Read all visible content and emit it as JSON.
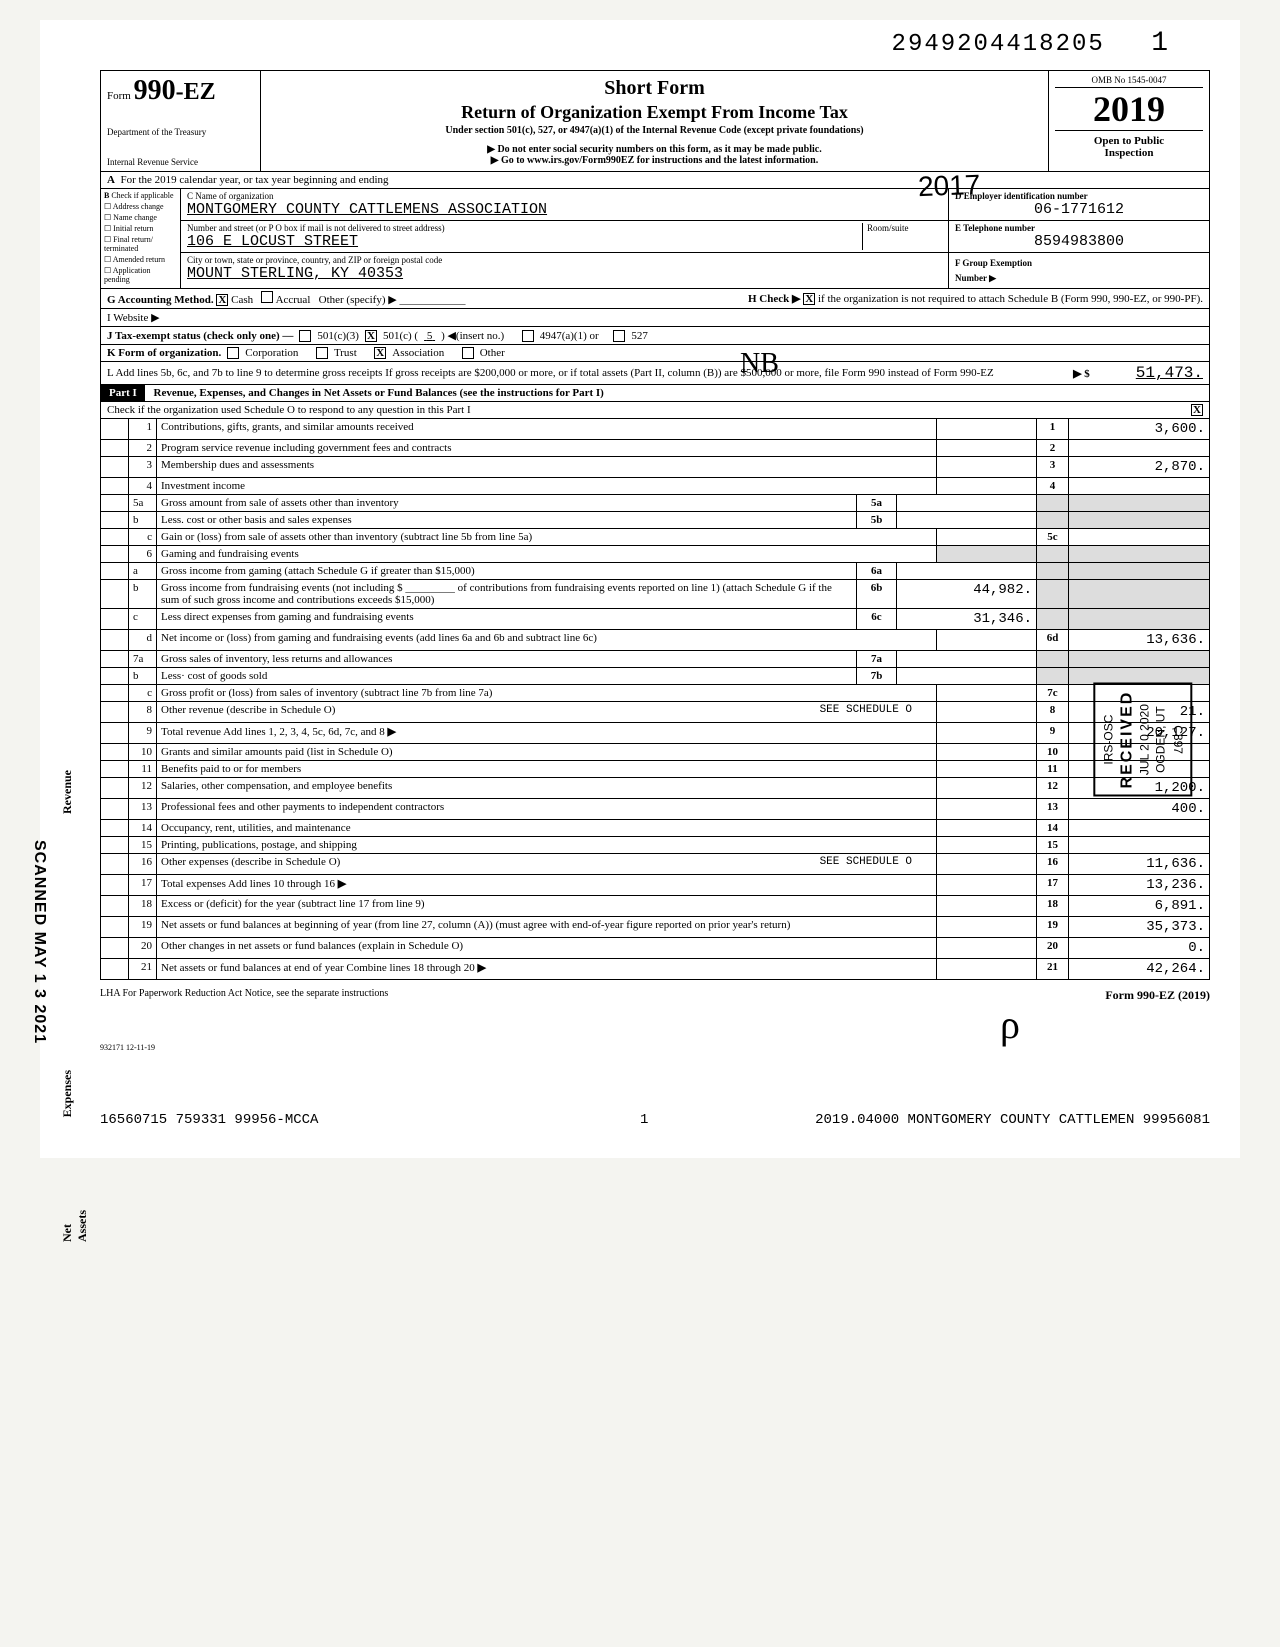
{
  "dln": "2949204418205",
  "dln_suffix": "1",
  "form": {
    "prefix": "Form",
    "number": "990-EZ",
    "short": "Short Form",
    "title": "Return of Organization Exempt From Income Tax",
    "subtitle": "Under section 501(c), 527, or 4947(a)(1) of the Internal Revenue Code (except private foundations)",
    "warn": "▶ Do not enter social security numbers on this form, as it may be made public.",
    "goto": "▶ Go to www.irs.gov/Form990EZ for instructions and the latest information.",
    "dept1": "Department of the Treasury",
    "dept2": "Internal Revenue Service",
    "omb": "OMB No 1545-0047",
    "year": "2019",
    "open1": "Open to Public",
    "open2": "Inspection"
  },
  "stamp_year": "2017",
  "line_a": "For the 2019 calendar year, or tax year beginning                                               and ending",
  "checkboxes": {
    "header": "Check if applicable",
    "items": [
      "Address change",
      "Name change",
      "Initial return",
      "Final return/ terminated",
      "Amended return",
      "Application pending"
    ]
  },
  "org": {
    "c_label": "C Name of organization",
    "name": "MONTGOMERY COUNTY CATTLEMENS ASSOCIATION",
    "addr_label": "Number and street (or P O box if mail is not delivered to street address)",
    "room_label": "Room/suite",
    "street": "106 E LOCUST STREET",
    "city_label": "City or town, state or province, country, and ZIP or foreign postal code",
    "city": "MOUNT STERLING, KY  40353",
    "d_label": "D Employer identification number",
    "ein": "06-1771612",
    "e_label": "E Telephone number",
    "phone": "8594983800",
    "f_label": "F Group Exemption",
    "f_label2": "Number ▶"
  },
  "initials": "NB",
  "line_g": {
    "label": "G  Accounting Method.",
    "cash": "Cash",
    "accrual": "Accrual",
    "other": "Other (specify) ▶",
    "cash_checked": "X"
  },
  "line_h": {
    "label": "H Check ▶",
    "text": "if the organization is not required to attach Schedule B (Form 990, 990-EZ, or 990-PF).",
    "checked": "X"
  },
  "line_i": "I   Website ▶",
  "line_j": {
    "label": "J   Tax-exempt status (check only one) —",
    "c3": "501(c)(3)",
    "c": "501(c) (",
    "cnum": "5",
    "cnum_after": ") ◀(insert no.)",
    "a": "4947(a)(1) or",
    "s527": "527",
    "checked": "X"
  },
  "line_k": {
    "label": "K  Form of organization.",
    "corp": "Corporation",
    "trust": "Trust",
    "assoc": "Association",
    "other": "Other",
    "checked": "X"
  },
  "line_l": {
    "text": "L  Add lines 5b, 6c, and 7b to line 9 to determine gross receipts  If gross receipts are $200,000 or more, or if total assets (Part II, column (B)) are $500,000 or more, file Form 990 instead of Form 990-EZ",
    "arrow": "▶  $",
    "amt": "51,473."
  },
  "part1": {
    "label": "Part I",
    "title": "Revenue, Expenses, and Changes in Net Assets or Fund Balances (see the instructions for Part I)",
    "check_text": "Check if the organization used Schedule O to respond to any question in this Part I",
    "checked": "X"
  },
  "rows": [
    {
      "n": "1",
      "desc": "Contributions, gifts, grants, and similar amounts received",
      "ln": "1",
      "amt": "3,600."
    },
    {
      "n": "2",
      "desc": "Program service revenue including government fees and contracts",
      "ln": "2",
      "amt": ""
    },
    {
      "n": "3",
      "desc": "Membership dues and assessments",
      "ln": "3",
      "amt": "2,870."
    },
    {
      "n": "4",
      "desc": "Investment income",
      "ln": "4",
      "amt": ""
    }
  ],
  "rows5": [
    {
      "n": "5a",
      "desc": "Gross amount from sale of assets other than inventory",
      "iln": "5a",
      "iamt": ""
    },
    {
      "n": "b",
      "desc": "Less. cost or other basis and sales expenses",
      "iln": "5b",
      "iamt": ""
    },
    {
      "n": "c",
      "desc": "Gain or (loss) from sale of assets other than inventory (subtract line 5b from line 5a)",
      "ln": "5c",
      "amt": ""
    }
  ],
  "rows6": {
    "hdr": {
      "n": "6",
      "desc": "Gaming and fundraising events"
    },
    "a": {
      "n": "a",
      "desc": "Gross income from gaming (attach Schedule G if greater than $15,000)",
      "iln": "6a",
      "iamt": ""
    },
    "b": {
      "n": "b",
      "desc1": "Gross income from fundraising events (not including $",
      "desc2": "of contributions from fundraising events reported on line 1) (attach Schedule G if the sum of such gross income and contributions exceeds $15,000)",
      "iln": "6b",
      "iamt": "44,982."
    },
    "c": {
      "n": "c",
      "desc": "Less  direct expenses from gaming and fundraising events",
      "iln": "6c",
      "iamt": "31,346."
    },
    "d": {
      "n": "d",
      "desc": "Net income or (loss) from gaming and fundraising events (add lines 6a and 6b and subtract line 6c)",
      "ln": "6d",
      "amt": "13,636."
    }
  },
  "rows7": [
    {
      "n": "7a",
      "desc": "Gross sales of inventory, less returns and allowances",
      "iln": "7a",
      "iamt": ""
    },
    {
      "n": "b",
      "desc": "Less· cost of goods sold",
      "iln": "7b",
      "iamt": ""
    },
    {
      "n": "c",
      "desc": "Gross profit or (loss) from sales of inventory (subtract line 7b from line 7a)",
      "ln": "7c",
      "amt": ""
    }
  ],
  "rows_rev_end": [
    {
      "n": "8",
      "desc": "Other revenue (describe in Schedule O)",
      "note": "SEE SCHEDULE O",
      "ln": "8",
      "amt": "21."
    },
    {
      "n": "9",
      "desc": "Total revenue  Add lines 1, 2, 3, 4, 5c, 6d, 7c, and 8",
      "arrow": true,
      "ln": "9",
      "amt": "20,127."
    }
  ],
  "rows_exp": [
    {
      "n": "10",
      "desc": "Grants and similar amounts paid (list in Schedule O)",
      "ln": "10",
      "amt": ""
    },
    {
      "n": "11",
      "desc": "Benefits paid to or for members",
      "ln": "11",
      "amt": ""
    },
    {
      "n": "12",
      "desc": "Salaries, other compensation, and employee benefits",
      "ln": "12",
      "amt": "1,200."
    },
    {
      "n": "13",
      "desc": "Professional fees and other payments to independent contractors",
      "ln": "13",
      "amt": "400."
    },
    {
      "n": "14",
      "desc": "Occupancy, rent, utilities, and maintenance",
      "ln": "14",
      "amt": ""
    },
    {
      "n": "15",
      "desc": "Printing, publications, postage, and shipping",
      "ln": "15",
      "amt": ""
    },
    {
      "n": "16",
      "desc": "Other expenses (describe in Schedule O)",
      "note": "SEE SCHEDULE O",
      "ln": "16",
      "amt": "11,636."
    },
    {
      "n": "17",
      "desc": "Total expenses  Add lines 10 through 16",
      "arrow": true,
      "ln": "17",
      "amt": "13,236."
    }
  ],
  "rows_net": [
    {
      "n": "18",
      "desc": "Excess or (deficit) for the year (subtract line 17 from line 9)",
      "ln": "18",
      "amt": "6,891."
    },
    {
      "n": "19",
      "desc": "Net assets or fund balances at beginning of year (from line 27, column (A)) (must agree with end-of-year figure reported on prior year's return)",
      "ln": "19",
      "amt": "35,373."
    },
    {
      "n": "20",
      "desc": "Other changes in net assets or fund balances (explain in Schedule O)",
      "ln": "20",
      "amt": "0."
    },
    {
      "n": "21",
      "desc": "Net assets or fund balances at end of year  Combine lines 18 through 20",
      "arrow": true,
      "ln": "21",
      "amt": "42,264."
    }
  ],
  "labels": {
    "revenue": "Revenue",
    "expenses": "Expenses",
    "netassets": "Net Assets"
  },
  "scanned": "SCANNED MAY 1 3 2021",
  "received": {
    "r": "RECEIVED",
    "date": "JUL 2 0 2020",
    "loc1": "IRS-OSC",
    "loc2": "OGDEN, UT",
    "code": "C897"
  },
  "footer": {
    "lha": "LHA  For Paperwork Reduction Act Notice, see the separate instructions",
    "form": "Form 990-EZ (2019)",
    "rev": "932171  12-11-19"
  },
  "bottom": {
    "page": "1",
    "left": "16560715 759331 99956-MCCA",
    "right": "2019.04000 MONTGOMERY COUNTY CATTLEMEN 99956081"
  }
}
